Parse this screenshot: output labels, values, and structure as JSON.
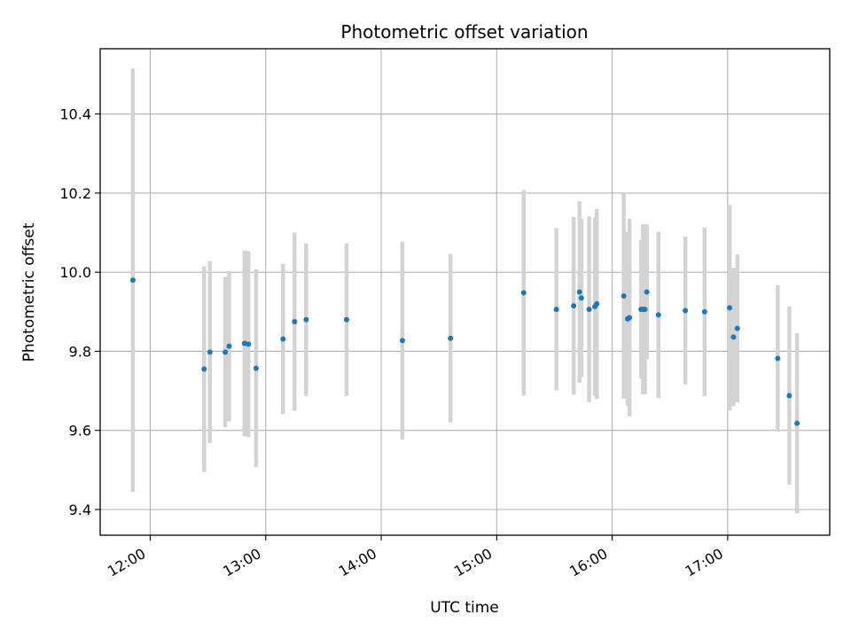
{
  "chart_data": {
    "type": "scatter",
    "title": "Photometric offset variation",
    "xlabel": "UTC time",
    "ylabel": "Photometric offset",
    "x_tick_labels": [
      "12:00",
      "13:00",
      "14:00",
      "15:00",
      "16:00",
      "17:00"
    ],
    "y_tick_labels": [
      "9.4",
      "9.6",
      "9.8",
      "10.0",
      "10.2",
      "10.4"
    ],
    "x_ticks": [
      "12:00",
      "13:00",
      "14:00",
      "15:00",
      "16:00",
      "17:00"
    ],
    "y_ticks": [
      9.4,
      9.6,
      9.8,
      10.0,
      10.2,
      10.4
    ],
    "xlim": [
      "11:34",
      "17:53"
    ],
    "ylim": [
      9.335,
      10.565
    ],
    "grid": true,
    "marker_color": "#1f77b4",
    "errorbar_color": "#d3d3d3",
    "points": [
      {
        "x": "11:51",
        "y": 9.98,
        "yerr": 0.535
      },
      {
        "x": "12:28",
        "y": 9.755,
        "yerr": 0.26
      },
      {
        "x": "12:31",
        "y": 9.798,
        "yerr": 0.23
      },
      {
        "x": "12:39",
        "y": 9.798,
        "yerr": 0.19
      },
      {
        "x": "12:41",
        "y": 9.813,
        "yerr": 0.19
      },
      {
        "x": "12:49",
        "y": 9.82,
        "yerr": 0.235
      },
      {
        "x": "12:51",
        "y": 9.818,
        "yerr": 0.235
      },
      {
        "x": "12:55",
        "y": 9.757,
        "yerr": 0.25
      },
      {
        "x": "13:09",
        "y": 9.831,
        "yerr": 0.19
      },
      {
        "x": "13:15",
        "y": 9.875,
        "yerr": 0.225
      },
      {
        "x": "13:21",
        "y": 9.88,
        "yerr": 0.193
      },
      {
        "x": "13:42",
        "y": 9.88,
        "yerr": 0.193
      },
      {
        "x": "14:11",
        "y": 9.827,
        "yerr": 0.25
      },
      {
        "x": "14:36",
        "y": 9.833,
        "yerr": 0.213
      },
      {
        "x": "15:14",
        "y": 9.948,
        "yerr": 0.26
      },
      {
        "x": "15:31",
        "y": 9.906,
        "yerr": 0.205
      },
      {
        "x": "15:40",
        "y": 9.915,
        "yerr": 0.225
      },
      {
        "x": "15:43",
        "y": 9.95,
        "yerr": 0.23
      },
      {
        "x": "15:44",
        "y": 9.935,
        "yerr": 0.2
      },
      {
        "x": "15:48",
        "y": 9.906,
        "yerr": 0.235
      },
      {
        "x": "15:51",
        "y": 9.913,
        "yerr": 0.225
      },
      {
        "x": "15:52",
        "y": 9.92,
        "yerr": 0.24
      },
      {
        "x": "16:06",
        "y": 9.94,
        "yerr": 0.26
      },
      {
        "x": "16:08",
        "y": 9.882,
        "yerr": 0.22
      },
      {
        "x": "16:09",
        "y": 9.885,
        "yerr": 0.25
      },
      {
        "x": "16:15",
        "y": 9.906,
        "yerr": 0.175
      },
      {
        "x": "16:16",
        "y": 9.906,
        "yerr": 0.215
      },
      {
        "x": "16:17",
        "y": 9.906,
        "yerr": 0.215
      },
      {
        "x": "16:18",
        "y": 9.95,
        "yerr": 0.17
      },
      {
        "x": "16:24",
        "y": 9.892,
        "yerr": 0.21
      },
      {
        "x": "16:38",
        "y": 9.903,
        "yerr": 0.187
      },
      {
        "x": "16:48",
        "y": 9.9,
        "yerr": 0.213
      },
      {
        "x": "17:01",
        "y": 9.91,
        "yerr": 0.26
      },
      {
        "x": "17:03",
        "y": 9.836,
        "yerr": 0.175
      },
      {
        "x": "17:05",
        "y": 9.858,
        "yerr": 0.187
      },
      {
        "x": "17:26",
        "y": 9.782,
        "yerr": 0.185
      },
      {
        "x": "17:32",
        "y": 9.688,
        "yerr": 0.225
      },
      {
        "x": "17:36",
        "y": 9.618,
        "yerr": 0.228
      }
    ]
  }
}
